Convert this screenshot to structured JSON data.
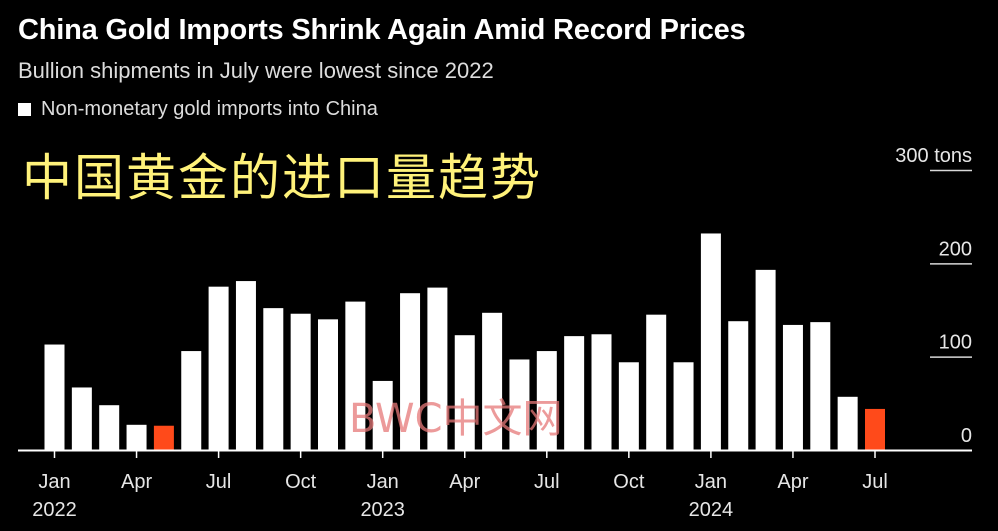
{
  "header": {
    "title": "China Gold Imports Shrink Again Amid Record Prices",
    "subtitle": "Bullion shipments in July were lowest since 2022",
    "legend_label": "Non-monetary gold imports into China"
  },
  "overlay_text": "中国黄金的进口量趋势",
  "watermark_text": "BWC中文网",
  "colors": {
    "bar": "#ffffff",
    "highlight": "#ff4a1a",
    "background": "#000000",
    "axis": "#ffffff"
  },
  "chart_data": {
    "type": "bar",
    "title": "China Gold Imports Shrink Again Amid Record Prices",
    "subtitle": "Bullion shipments in July were lowest since 2022",
    "series": [
      {
        "name": "Non-monetary gold imports into China",
        "values": [
          113,
          67,
          48,
          27,
          26,
          106,
          175,
          181,
          152,
          146,
          140,
          159,
          74,
          168,
          174,
          123,
          147,
          97,
          106,
          122,
          124,
          94,
          145,
          94,
          232,
          138,
          193,
          134,
          137,
          57,
          44
        ]
      }
    ],
    "categories": [
      "Jan 2022",
      "Feb 2022",
      "Mar 2022",
      "Apr 2022",
      "May 2022",
      "Jun 2022",
      "Jul 2022",
      "Aug 2022",
      "Sep 2022",
      "Oct 2022",
      "Nov 2022",
      "Dec 2022",
      "Jan 2023",
      "Feb 2023",
      "Mar 2023",
      "Apr 2023",
      "May 2023",
      "Jun 2023",
      "Jul 2023",
      "Aug 2023",
      "Sep 2023",
      "Oct 2023",
      "Nov 2023",
      "Dec 2023",
      "Jan 2024",
      "Feb 2024",
      "Mar 2024",
      "Apr 2024",
      "May 2024",
      "Jun 2024",
      "Jul 2024"
    ],
    "highlighted": [
      4,
      30
    ],
    "x_ticks": [
      {
        "index": 0,
        "label": "Jan",
        "year": "2022"
      },
      {
        "index": 3,
        "label": "Apr"
      },
      {
        "index": 6,
        "label": "Jul"
      },
      {
        "index": 9,
        "label": "Oct"
      },
      {
        "index": 12,
        "label": "Jan",
        "year": "2023"
      },
      {
        "index": 15,
        "label": "Apr"
      },
      {
        "index": 18,
        "label": "Jul"
      },
      {
        "index": 21,
        "label": "Oct"
      },
      {
        "index": 24,
        "label": "Jan",
        "year": "2024"
      },
      {
        "index": 27,
        "label": "Apr"
      },
      {
        "index": 30,
        "label": "Jul"
      }
    ],
    "y_ticks": [
      {
        "value": 0,
        "label": "0"
      },
      {
        "value": 100,
        "label": "100"
      },
      {
        "value": 200,
        "label": "200"
      },
      {
        "value": 300,
        "label": "300 tons"
      }
    ],
    "ylim": [
      0,
      300
    ],
    "grid": false,
    "legend": "top-left"
  }
}
